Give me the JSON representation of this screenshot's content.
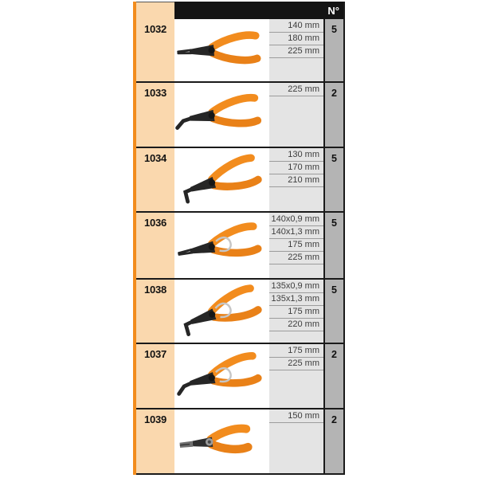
{
  "table": {
    "header": {
      "quantity_column_label": "N°"
    },
    "colors": {
      "accent_strip": "#F28C1D",
      "code_column_bg": "#FAD8AE",
      "sizes_column_bg": "#E4E4E4",
      "quantity_column_bg": "#B4B4B4",
      "header_bg": "#141414",
      "border": "#1A1A1A",
      "handle_orange": "#F28C1E"
    },
    "rows": [
      {
        "code": "1032",
        "sizes": [
          "140 mm",
          "180 mm",
          "225 mm"
        ],
        "quantity": "5",
        "image": {
          "icon": "plier-internal-straight-icon",
          "tilt_deg": -4
        }
      },
      {
        "code": "1033",
        "sizes": [
          "225 mm"
        ],
        "quantity": "2",
        "image": {
          "icon": "plier-internal-bent45-icon",
          "tilt_deg": -8
        }
      },
      {
        "code": "1034",
        "sizes": [
          "130 mm",
          "170 mm",
          "210 mm"
        ],
        "quantity": "5",
        "image": {
          "icon": "plier-internal-bent90-icon",
          "tilt_deg": -18
        }
      },
      {
        "code": "1036",
        "sizes": [
          "140x0,9 mm",
          "140x1,3 mm",
          "175 mm",
          "225 mm"
        ],
        "quantity": "5",
        "image": {
          "icon": "plier-external-straight-icon",
          "tilt_deg": -12
        }
      },
      {
        "code": "1038",
        "sizes": [
          "135x0,9 mm",
          "135x1,3 mm",
          "175 mm",
          "220 mm"
        ],
        "quantity": "5",
        "image": {
          "icon": "plier-external-bent90-icon",
          "tilt_deg": -20
        }
      },
      {
        "code": "1037",
        "sizes": [
          "175 mm",
          "225 mm"
        ],
        "quantity": "2",
        "image": {
          "icon": "plier-external-bent45-icon",
          "tilt_deg": -14
        }
      },
      {
        "code": "1039",
        "sizes": [
          "150 mm"
        ],
        "quantity": "2",
        "image": {
          "icon": "plier-internal-short-icon",
          "tilt_deg": -6
        }
      }
    ]
  }
}
